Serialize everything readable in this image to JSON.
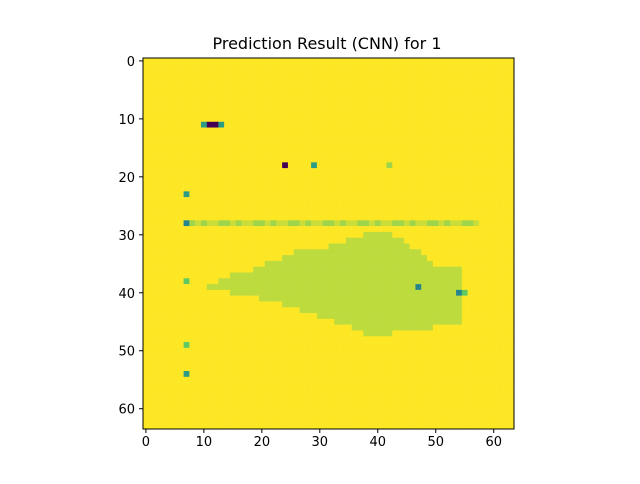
{
  "chart_data": {
    "type": "heatmap",
    "title": "Prediction Result (CNN) for 1",
    "xlabel": "",
    "ylabel": "",
    "xlim": [
      -0.5,
      63.5
    ],
    "ylim": [
      63.5,
      -0.5
    ],
    "grid": false,
    "x_ticks": [
      0,
      10,
      20,
      30,
      40,
      50,
      60
    ],
    "y_ticks": [
      0,
      10,
      20,
      30,
      40,
      50,
      60
    ],
    "grid_size": [
      64,
      64
    ],
    "colormap": "viridis",
    "colors": {
      "background": "#fde725",
      "blob": "#d6e21f",
      "faint": "#c8e020",
      "light_green": "#7ad151",
      "teal": "#21a585",
      "blue": "#2a788e",
      "dark": "#440154"
    },
    "background_value": 1.0,
    "regions": [
      {
        "label": "blob",
        "value": 0.9,
        "rows": [
          [
            30,
            38,
            42
          ],
          [
            31,
            35,
            44
          ],
          [
            32,
            32,
            45
          ],
          [
            33,
            26,
            47
          ],
          [
            34,
            24,
            48
          ],
          [
            35,
            21,
            49
          ],
          [
            36,
            19,
            54
          ],
          [
            37,
            15,
            54
          ],
          [
            38,
            13,
            54
          ],
          [
            39,
            11,
            54
          ],
          [
            40,
            15,
            54
          ],
          [
            41,
            20,
            54
          ],
          [
            42,
            24,
            54
          ],
          [
            43,
            27,
            54
          ],
          [
            44,
            30,
            54
          ],
          [
            45,
            33,
            54
          ],
          [
            46,
            36,
            49
          ],
          [
            47,
            38,
            42
          ]
        ]
      }
    ],
    "points": [
      {
        "x": 10,
        "y": 11,
        "value": 0.55
      },
      {
        "x": 11,
        "y": 11,
        "value": 0.0
      },
      {
        "x": 12,
        "y": 11,
        "value": 0.0
      },
      {
        "x": 13,
        "y": 11,
        "value": 0.55
      },
      {
        "x": 24,
        "y": 18,
        "value": 0.0
      },
      {
        "x": 29,
        "y": 18,
        "value": 0.55
      },
      {
        "x": 42,
        "y": 18,
        "value": 0.85
      },
      {
        "x": 7,
        "y": 23,
        "value": 0.55
      },
      {
        "x": 7,
        "y": 28,
        "value": 0.45
      },
      {
        "x": 7,
        "y": 38,
        "value": 0.75
      },
      {
        "x": 47,
        "y": 39,
        "value": 0.45
      },
      {
        "x": 54,
        "y": 40,
        "value": 0.45
      },
      {
        "x": 55,
        "y": 40,
        "value": 0.75
      },
      {
        "x": 7,
        "y": 49,
        "value": 0.75
      },
      {
        "x": 7,
        "y": 54,
        "value": 0.55
      }
    ],
    "stripe": {
      "y": 28,
      "x_start": 8,
      "x_end": 57,
      "values": [
        0.85,
        0.92,
        0.85,
        0.92,
        0.92,
        0.85
      ]
    }
  }
}
